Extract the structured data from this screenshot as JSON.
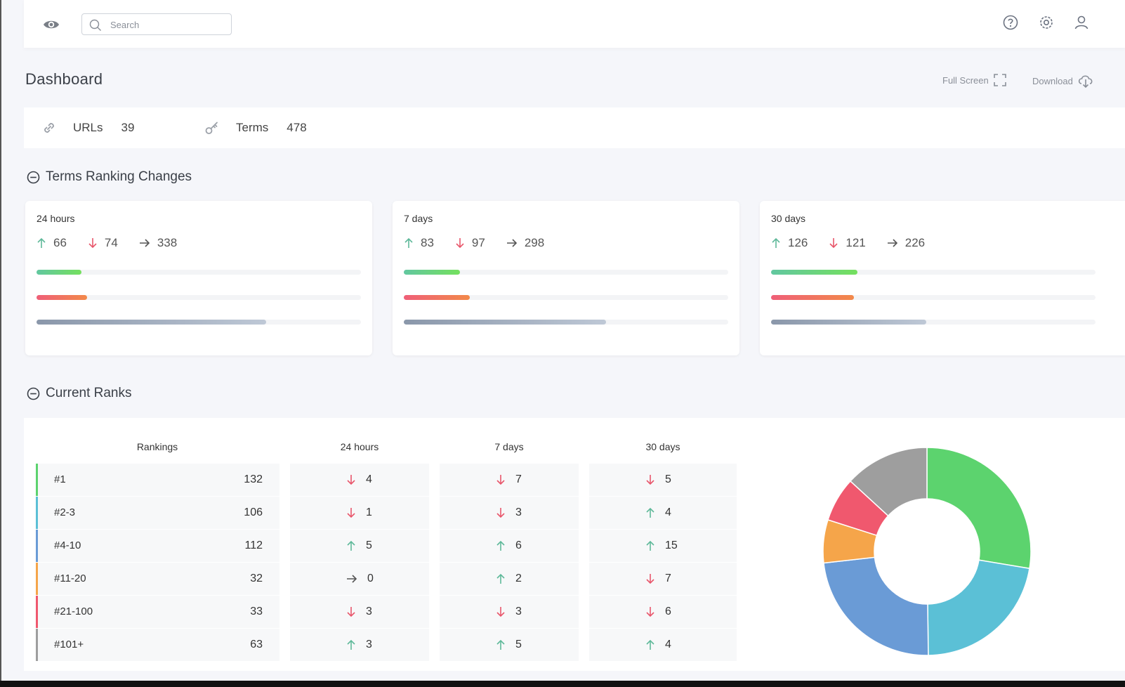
{
  "search": {
    "placeholder": "Search"
  },
  "header": {
    "title": "Dashboard",
    "fullscreen_label": "Full Screen",
    "download_label": "Download"
  },
  "summary": {
    "urls_label": "URLs",
    "urls_value": "39",
    "terms_label": "Terms",
    "terms_value": "478"
  },
  "sections": {
    "changes_title": "Terms Ranking Changes",
    "ranks_title": "Current Ranks"
  },
  "changes": [
    {
      "period": "24 hours",
      "up": "66",
      "down": "74",
      "same": "338"
    },
    {
      "period": "7 days",
      "up": "83",
      "down": "97",
      "same": "298"
    },
    {
      "period": "30 days",
      "up": "126",
      "down": "121",
      "same": "226"
    }
  ],
  "ranks": {
    "headers": [
      "Rankings",
      "24 hours",
      "7 days",
      "30 days"
    ],
    "rows": [
      {
        "label": "#1",
        "value": "132",
        "color": "#5cd36e",
        "changes": [
          {
            "dir": "down",
            "v": "4"
          },
          {
            "dir": "down",
            "v": "7"
          },
          {
            "dir": "down",
            "v": "5"
          }
        ]
      },
      {
        "label": "#2-3",
        "value": "106",
        "color": "#5bc0d6",
        "changes": [
          {
            "dir": "down",
            "v": "1"
          },
          {
            "dir": "down",
            "v": "3"
          },
          {
            "dir": "up",
            "v": "4"
          }
        ]
      },
      {
        "label": "#4-10",
        "value": "112",
        "color": "#6a9bd6",
        "changes": [
          {
            "dir": "up",
            "v": "5"
          },
          {
            "dir": "up",
            "v": "6"
          },
          {
            "dir": "up",
            "v": "15"
          }
        ]
      },
      {
        "label": "#11-20",
        "value": "32",
        "color": "#f5a54a",
        "changes": [
          {
            "dir": "same",
            "v": "0"
          },
          {
            "dir": "up",
            "v": "2"
          },
          {
            "dir": "down",
            "v": "7"
          }
        ]
      },
      {
        "label": "#21-100",
        "value": "33",
        "color": "#f0586e",
        "changes": [
          {
            "dir": "down",
            "v": "3"
          },
          {
            "dir": "down",
            "v": "3"
          },
          {
            "dir": "down",
            "v": "6"
          }
        ]
      },
      {
        "label": "#101+",
        "value": "63",
        "color": "#9e9e9e",
        "changes": [
          {
            "dir": "up",
            "v": "3"
          },
          {
            "dir": "up",
            "v": "5"
          },
          {
            "dir": "up",
            "v": "4"
          }
        ]
      }
    ]
  },
  "colors": {
    "up": "#5fb99a",
    "down": "#e8566b",
    "same": "#555555",
    "icon": "#6b7280"
  },
  "icons": [
    "eye-icon",
    "search-icon",
    "help-icon",
    "gear-icon",
    "user-icon",
    "fullscreen-icon",
    "cloud-download-icon",
    "link-icon",
    "key-icon",
    "minus-circle-icon",
    "arrow-up-icon",
    "arrow-down-icon",
    "arrow-right-icon"
  ]
}
